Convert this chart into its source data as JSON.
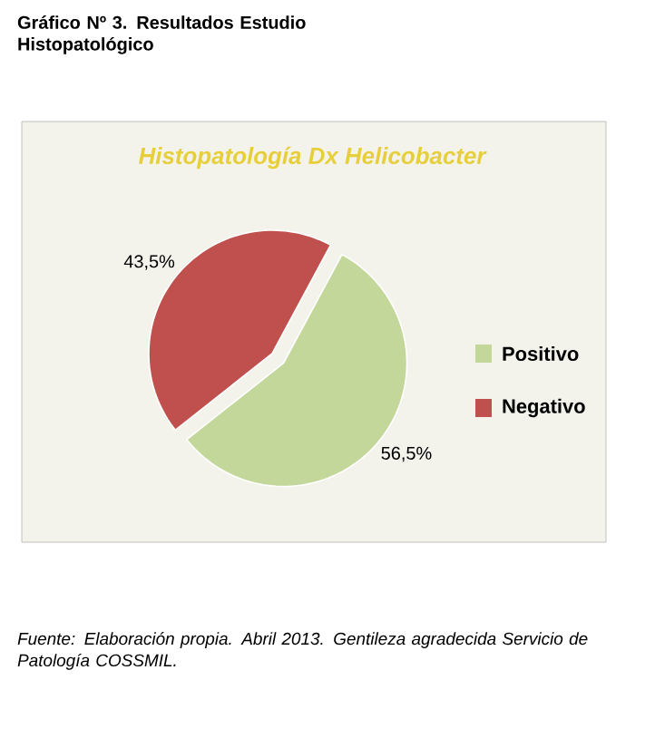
{
  "chart_data": {
    "type": "pie",
    "title": "Gráfico Nº 3. Resultados Estudio Histopatológico",
    "subtitle": "Histopatología Dx Helicobacter",
    "categories": [
      "Positivo",
      "Negativo"
    ],
    "values": [
      56.5,
      43.5
    ],
    "colors": [
      "#c4d79b",
      "#c0504d"
    ],
    "value_labels": [
      "56,5%",
      "43,5%"
    ],
    "legend": "right",
    "annotations": [
      "Fuente: Elaboración propia. Abril 2013. Gentileza agradecida Servicio de Patología COSSMIL."
    ]
  }
}
